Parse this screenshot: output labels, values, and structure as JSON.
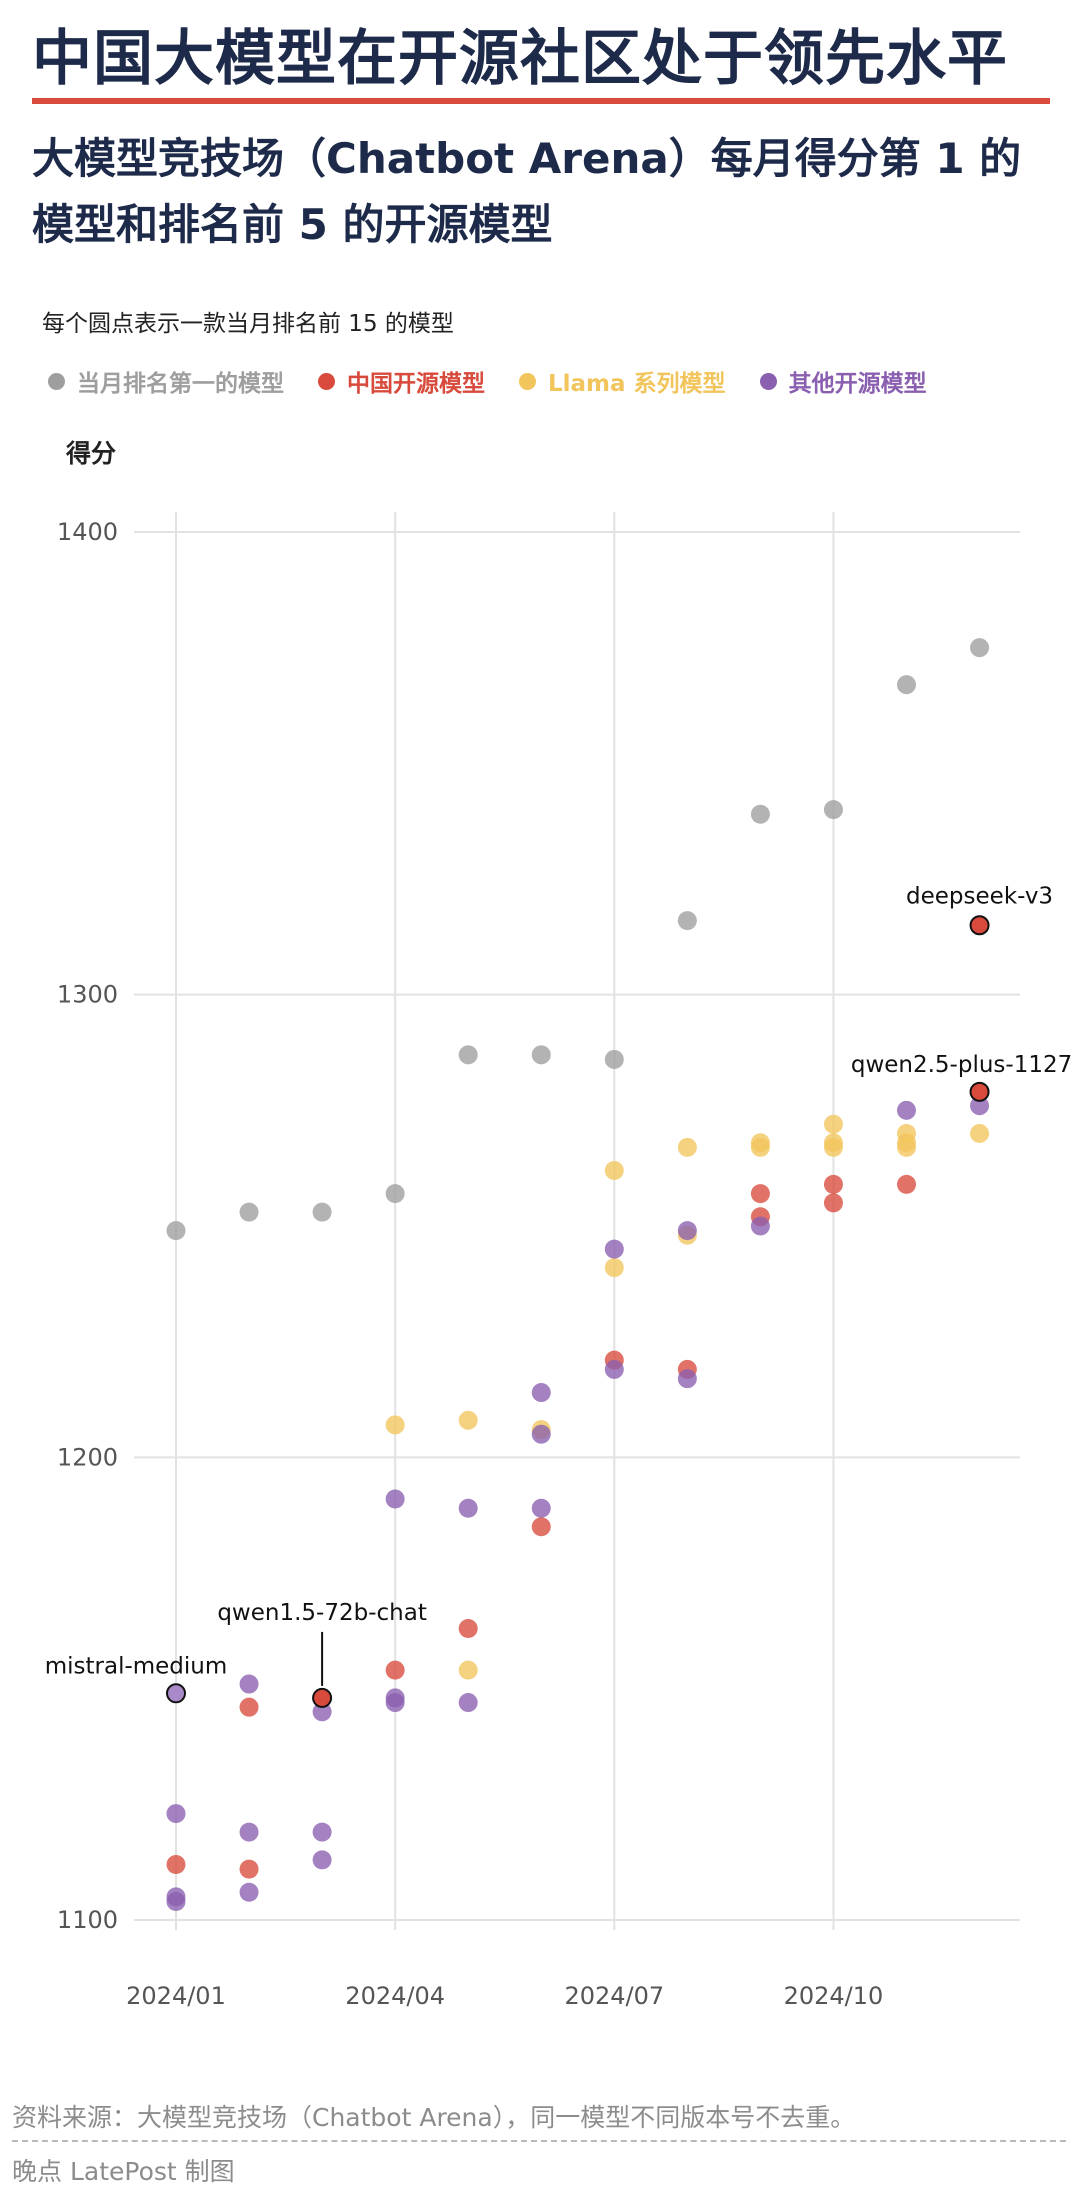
{
  "header": {
    "title": "中国大模型在开源社区处于领先水平",
    "subtitle": "大模型竞技场（Chatbot Arena）每月得分第 1 的模型和排名前 5 的开源模型",
    "note": "每个圆点表示一款当月排名前 15 的模型"
  },
  "legend": [
    {
      "label": "当月排名第一的模型",
      "color": "#9e9e9e"
    },
    {
      "label": "中国开源模型",
      "color": "#d84a3c"
    },
    {
      "label": "Llama 系列模型",
      "color": "#f2c55c"
    },
    {
      "label": "其他开源模型",
      "color": "#8a5fb0"
    }
  ],
  "footer": {
    "source": "资料来源：大模型竞技场（Chatbot Arena），同一模型不同版本号不去重。",
    "credit": "晚点 LatePost 制图"
  },
  "chart_data": {
    "type": "scatter",
    "ylabel": "得分",
    "ylim": [
      1100,
      1400
    ],
    "yticks": [
      1100,
      1200,
      1300,
      1400
    ],
    "x_categories": [
      "2024/01",
      "2024/02",
      "2024/03",
      "2024/04",
      "2024/05",
      "2024/06",
      "2024/07",
      "2024/08",
      "2024/09",
      "2024/10",
      "2024/11",
      "2024/12"
    ],
    "xtick_labels": [
      {
        "index": 0,
        "label": "2024/01"
      },
      {
        "index": 3,
        "label": "2024/04"
      },
      {
        "index": 6,
        "label": "2024/07"
      },
      {
        "index": 9,
        "label": "2024/10"
      }
    ],
    "grid": true,
    "series": [
      {
        "name": "当月排名第一的模型",
        "color": "#9e9e9e",
        "points": [
          [
            0,
            1249
          ],
          [
            1,
            1253
          ],
          [
            2,
            1253
          ],
          [
            3,
            1257
          ],
          [
            4,
            1287
          ],
          [
            5,
            1287
          ],
          [
            6,
            1286
          ],
          [
            7,
            1316
          ],
          [
            8,
            1339
          ],
          [
            9,
            1340
          ],
          [
            10,
            1367
          ],
          [
            11,
            1375
          ]
        ]
      },
      {
        "name": "中国开源模型",
        "color": "#d84a3c",
        "points": [
          [
            0,
            1112
          ],
          [
            1,
            1111
          ],
          [
            1,
            1146
          ],
          [
            2,
            1148
          ],
          [
            3,
            1154
          ],
          [
            4,
            1163
          ],
          [
            5,
            1185
          ],
          [
            6,
            1221
          ],
          [
            7,
            1219
          ],
          [
            8,
            1252
          ],
          [
            8,
            1257
          ],
          [
            9,
            1255
          ],
          [
            9,
            1259
          ],
          [
            10,
            1259
          ],
          [
            11,
            1315
          ],
          [
            11,
            1279
          ]
        ]
      },
      {
        "name": "Llama 系列模型",
        "color": "#f2c55c",
        "points": [
          [
            3,
            1207
          ],
          [
            4,
            1208
          ],
          [
            4,
            1154
          ],
          [
            5,
            1206
          ],
          [
            6,
            1241
          ],
          [
            6,
            1262
          ],
          [
            7,
            1248
          ],
          [
            7,
            1267
          ],
          [
            8,
            1267
          ],
          [
            8,
            1268
          ],
          [
            9,
            1267
          ],
          [
            9,
            1268
          ],
          [
            9,
            1272
          ],
          [
            10,
            1267
          ],
          [
            10,
            1268
          ],
          [
            10,
            1270
          ],
          [
            11,
            1270
          ]
        ]
      },
      {
        "name": "其他开源模型",
        "color": "#8a5fb0",
        "points": [
          [
            0,
            1104
          ],
          [
            0,
            1105
          ],
          [
            0,
            1123
          ],
          [
            0,
            1149
          ],
          [
            1,
            1106
          ],
          [
            1,
            1119
          ],
          [
            1,
            1151
          ],
          [
            2,
            1113
          ],
          [
            2,
            1119
          ],
          [
            2,
            1145
          ],
          [
            3,
            1147
          ],
          [
            3,
            1148
          ],
          [
            3,
            1191
          ],
          [
            4,
            1147
          ],
          [
            4,
            1189
          ],
          [
            5,
            1189
          ],
          [
            5,
            1205
          ],
          [
            5,
            1214
          ],
          [
            6,
            1219
          ],
          [
            6,
            1245
          ],
          [
            7,
            1217
          ],
          [
            7,
            1249
          ],
          [
            8,
            1250
          ],
          [
            10,
            1275
          ],
          [
            11,
            1276
          ]
        ]
      }
    ],
    "annotations": [
      {
        "label": "mistral-medium",
        "x": 0,
        "y": 1149
      },
      {
        "label": "qwen1.5-72b-chat",
        "x": 2,
        "y": 1148
      },
      {
        "label": "deepseek-v3",
        "x": 11,
        "y": 1315
      },
      {
        "label": "qwen2.5-plus-1127",
        "x": 11,
        "y": 1279
      }
    ]
  }
}
